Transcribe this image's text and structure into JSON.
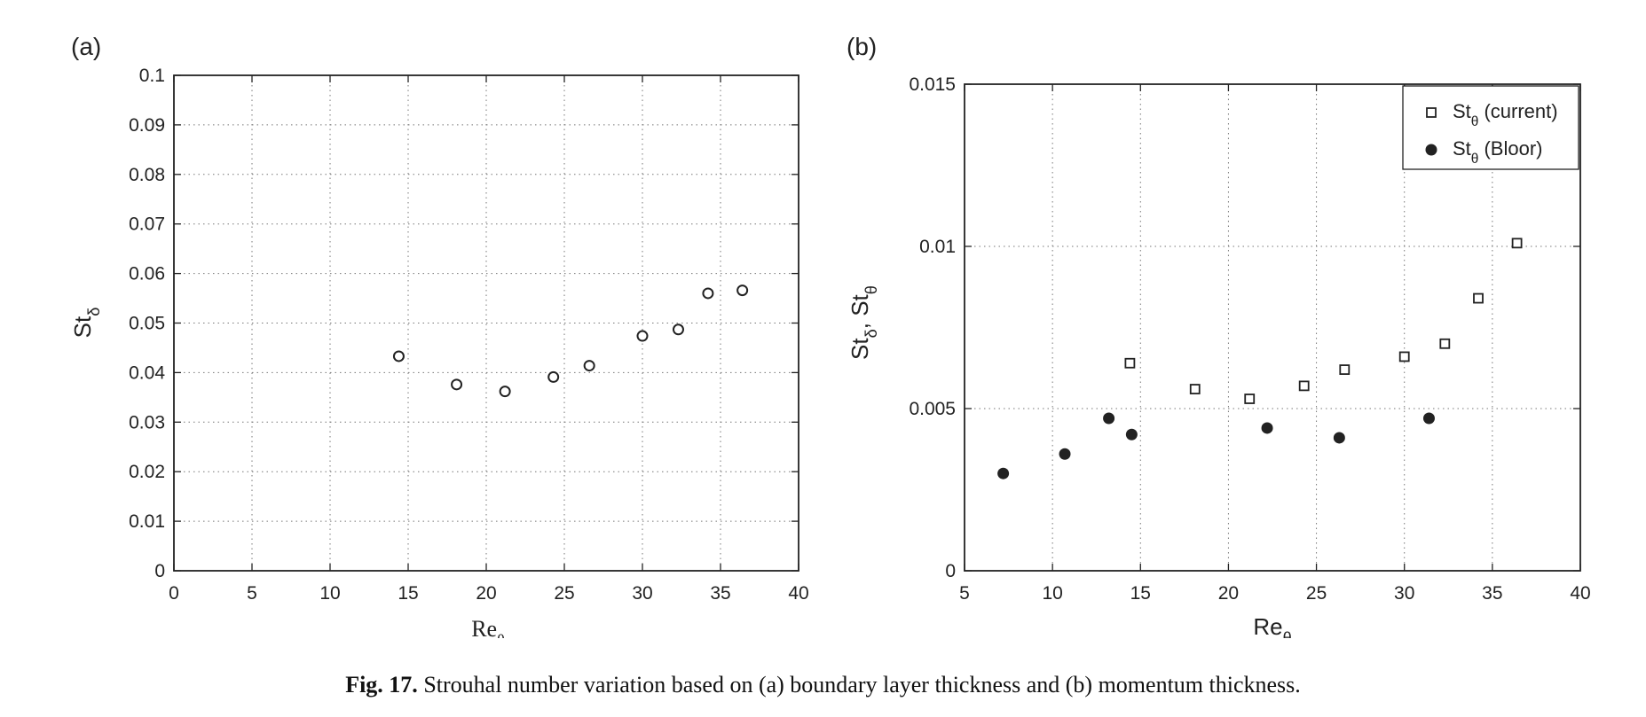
{
  "caption": {
    "label": "Fig. 17.",
    "text": " Strouhal number variation based on (a) boundary layer thickness and (b) momentum thickness."
  },
  "chart_data": [
    {
      "type": "scatter",
      "panel_label": "(a)",
      "xlabel": {
        "base": "Re",
        "sub": "θ"
      },
      "ylabel": {
        "base": "St",
        "sub": "δ"
      },
      "xlim": [
        0,
        40
      ],
      "ylim": [
        0,
        0.1
      ],
      "xticks": [
        "0",
        "5",
        "10",
        "15",
        "20",
        "25",
        "30",
        "35",
        "40"
      ],
      "yticks": [
        "0",
        "0.01",
        "0.02",
        "0.03",
        "0.04",
        "0.05",
        "0.06",
        "0.07",
        "0.08",
        "0.09",
        "0.1"
      ],
      "grid": true,
      "series": [
        {
          "marker": "open-circle",
          "color": "#222222",
          "x": [
            14.4,
            18.1,
            21.2,
            24.3,
            26.6,
            30.0,
            32.3,
            34.2,
            36.4
          ],
          "y": [
            0.0433,
            0.0376,
            0.0362,
            0.0391,
            0.0414,
            0.0474,
            0.0487,
            0.056,
            0.0566
          ]
        }
      ]
    },
    {
      "type": "scatter",
      "panel_label": "(b)",
      "xlabel": {
        "base": "Re",
        "sub": "θ"
      },
      "ylabel": {
        "parts": [
          {
            "base": "St",
            "sub": "δ"
          },
          {
            "base": "St",
            "sub": "θ"
          }
        ],
        "separator": ", "
      },
      "xlim": [
        5,
        40
      ],
      "ylim": [
        0,
        0.015
      ],
      "xticks": [
        "5",
        "10",
        "15",
        "20",
        "25",
        "30",
        "35",
        "40"
      ],
      "yticks": [
        "0",
        "0.005",
        "0.01",
        "0.015"
      ],
      "grid": true,
      "legend": {
        "position": "top-right"
      },
      "series": [
        {
          "name": {
            "base": "St",
            "sub": "θ",
            "suffix": " (current)"
          },
          "marker": "open-square",
          "color": "#222222",
          "x": [
            14.4,
            18.1,
            21.2,
            24.3,
            26.6,
            30.0,
            32.3,
            34.2,
            36.4
          ],
          "y": [
            0.0064,
            0.0056,
            0.0053,
            0.0057,
            0.0062,
            0.0066,
            0.007,
            0.0084,
            0.0101
          ]
        },
        {
          "name": {
            "base": "St",
            "sub": "θ",
            "suffix": " (Bloor)"
          },
          "marker": "filled-circle",
          "color": "#222222",
          "x": [
            7.2,
            10.7,
            13.2,
            14.5,
            22.2,
            26.3,
            31.4
          ],
          "y": [
            0.003,
            0.0036,
            0.0047,
            0.0042,
            0.0044,
            0.0041,
            0.0047
          ]
        }
      ]
    }
  ]
}
